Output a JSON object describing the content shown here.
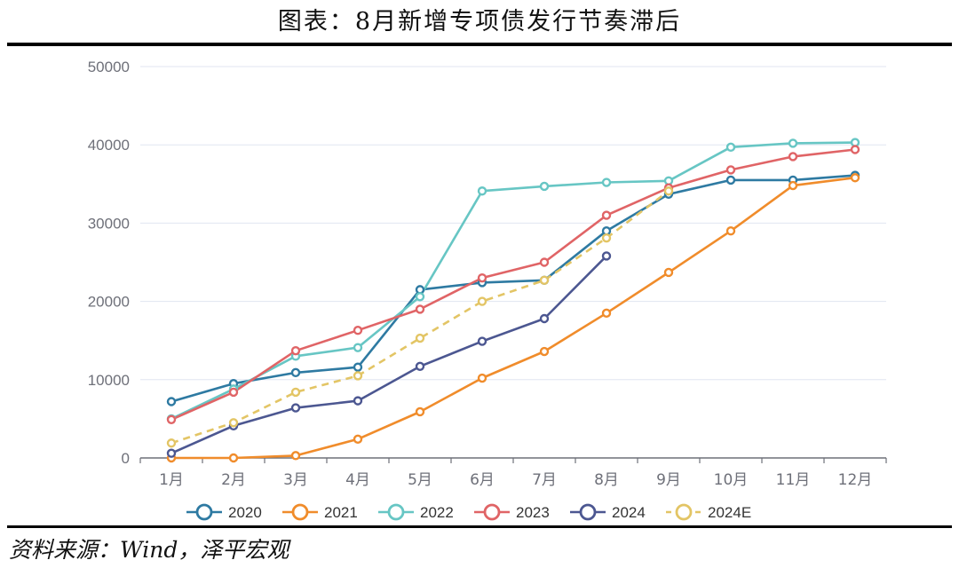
{
  "header": {
    "title": "图表：8月新增专项债发行节奏滞后"
  },
  "footer": {
    "source": "资料来源：Wind，泽平宏观"
  },
  "chart_data": {
    "type": "line",
    "title": "图表：8月新增专项债发行节奏滞后",
    "xlabel": "",
    "ylabel": "",
    "categories": [
      "1月",
      "2月",
      "3月",
      "4月",
      "5月",
      "6月",
      "7月",
      "8月",
      "9月",
      "10月",
      "11月",
      "12月"
    ],
    "ylim": [
      0,
      50000
    ],
    "yticks": [
      0,
      10000,
      20000,
      30000,
      40000,
      50000
    ],
    "grid": true,
    "legend": "bottom",
    "series": [
      {
        "name": "2020",
        "color": "#2e7aa2",
        "dashed": false,
        "values": [
          7200,
          9500,
          10900,
          11600,
          21500,
          22400,
          22700,
          29000,
          33700,
          35500,
          35500,
          36100
        ]
      },
      {
        "name": "2021",
        "color": "#f08c2b",
        "dashed": false,
        "values": [
          0,
          0,
          300,
          2400,
          5900,
          10200,
          13600,
          18500,
          23700,
          29000,
          34800,
          35800
        ]
      },
      {
        "name": "2022",
        "color": "#67c6c4",
        "dashed": false,
        "values": [
          5000,
          8800,
          13000,
          14100,
          20600,
          34100,
          34700,
          35200,
          35400,
          39700,
          40200,
          40300
        ]
      },
      {
        "name": "2023",
        "color": "#e06466",
        "dashed": false,
        "values": [
          4900,
          8400,
          13700,
          16300,
          19000,
          23000,
          25000,
          31000,
          34500,
          36800,
          38500,
          39400
        ]
      },
      {
        "name": "2024",
        "color": "#4c5791",
        "dashed": false,
        "values": [
          600,
          4100,
          6400,
          7300,
          11700,
          14900,
          17800,
          25800,
          null,
          null,
          null,
          null
        ]
      },
      {
        "name": "2024E",
        "color": "#e3c565",
        "dashed": true,
        "values": [
          1900,
          4500,
          8400,
          10500,
          15300,
          20000,
          22700,
          28100,
          34100,
          null,
          null,
          null
        ]
      }
    ]
  }
}
